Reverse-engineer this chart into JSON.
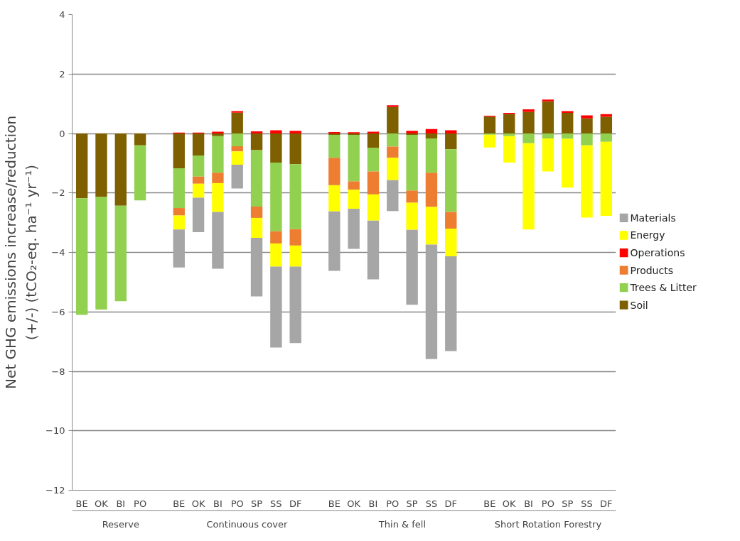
{
  "chart_data": {
    "type": "bar",
    "stacked": true,
    "ylabel": "Net GHG emissions increase/reduction\n(+/-) (tCO₂-eq. ha⁻¹ yr⁻¹)",
    "categories": [
      "BE",
      "OK",
      "BI",
      "PO",
      null,
      "BE",
      "OK",
      "BI",
      "PO",
      "SP",
      "SS",
      "DF",
      null,
      "BE",
      "OK",
      "BI",
      "PO",
      "SP",
      "SS",
      "DF",
      null,
      "BE",
      "OK",
      "BI",
      "PO",
      "SP",
      "SS",
      "DF"
    ],
    "annotations": [
      "Reserve",
      "Continuous cover",
      "Thin & fell",
      "Short Rotation Forestry"
    ],
    "series": [
      {
        "name": "Soil",
        "color": "#7f6000",
        "values": [
          -2.18,
          -2.14,
          -2.43,
          -0.4,
          null,
          -1.17,
          -0.74,
          -0.09,
          0.7,
          -0.56,
          -0.98,
          -1.03,
          null,
          -0.05,
          -0.05,
          -0.48,
          0.89,
          -0.05,
          -0.17,
          -0.53,
          null,
          0.57,
          0.65,
          0.72,
          1.08,
          0.69,
          0.51,
          0.56
        ]
      },
      {
        "name": "Trees & Litter",
        "color": "#92d050",
        "values": [
          -3.92,
          -3.78,
          -3.21,
          -1.85,
          null,
          -1.34,
          -0.71,
          -1.23,
          -0.43,
          -1.9,
          -2.31,
          -2.19,
          null,
          -0.77,
          -1.56,
          -0.8,
          -0.44,
          -1.87,
          -1.15,
          -2.11,
          null,
          -0.04,
          -0.09,
          -0.33,
          -0.17,
          -0.18,
          -0.4,
          -0.28
        ]
      },
      {
        "name": "Products",
        "color": "#ed7d31",
        "values": [
          null,
          null,
          null,
          null,
          null,
          -0.25,
          -0.24,
          -0.35,
          -0.17,
          -0.38,
          -0.41,
          -0.55,
          null,
          -0.92,
          -0.28,
          -0.77,
          -0.38,
          -0.41,
          -1.15,
          -0.56,
          null,
          null,
          null,
          null,
          null,
          null,
          null,
          null
        ]
      },
      {
        "name": "Operations",
        "color": "#ff0000",
        "values": [
          null,
          null,
          null,
          null,
          null,
          0.03,
          0.03,
          0.06,
          0.05,
          0.07,
          0.11,
          0.09,
          null,
          0.05,
          0.04,
          0.06,
          0.06,
          0.09,
          0.15,
          0.11,
          null,
          0.03,
          0.04,
          0.09,
          0.06,
          0.06,
          0.1,
          0.09
        ]
      },
      {
        "name": "Energy",
        "color": "#ffff00",
        "values": [
          null,
          null,
          null,
          null,
          null,
          -0.47,
          -0.47,
          -0.97,
          -0.45,
          -0.67,
          -0.78,
          -0.71,
          null,
          -0.88,
          -0.64,
          -0.88,
          -0.75,
          -0.91,
          -1.27,
          -0.93,
          null,
          -0.43,
          -0.89,
          -2.9,
          -1.11,
          -1.64,
          -2.43,
          -2.49
        ]
      },
      {
        "name": "Materials",
        "color": "#a6a6a6",
        "values": [
          null,
          null,
          null,
          null,
          null,
          -1.28,
          -1.16,
          -1.91,
          -0.8,
          -1.97,
          -2.72,
          -2.57,
          null,
          -2.0,
          -1.35,
          -1.98,
          -1.04,
          -2.52,
          -3.85,
          -3.19,
          null,
          null,
          null,
          null,
          null,
          null,
          null,
          null
        ]
      }
    ],
    "ylim": [
      -12,
      4
    ],
    "yticks": [
      -12,
      -10,
      -8,
      -6,
      -4,
      -2,
      0,
      2,
      4
    ],
    "grid": "y",
    "legend": "right"
  }
}
